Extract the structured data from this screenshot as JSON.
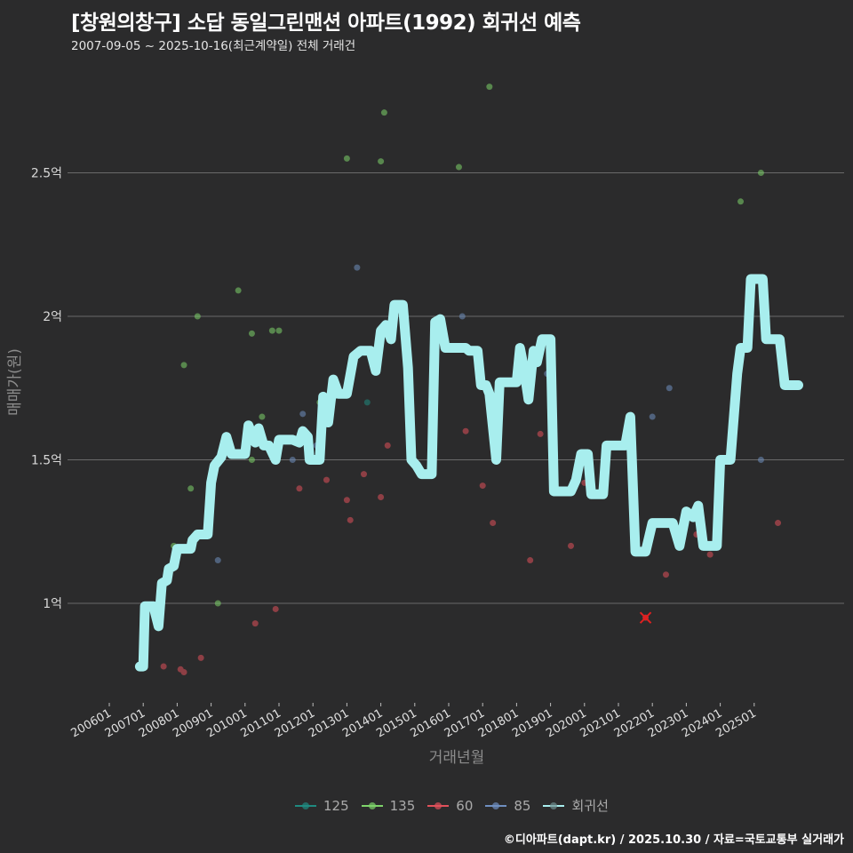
{
  "header": {
    "title": "[창원의창구] 소답 동일그린맨션 아파트(1992) 회귀선 예측",
    "subtitle": "2007-09-05 ~ 2025-10-16(최근계약일) 전체 거래건"
  },
  "footer": {
    "credit": "©디아파트(dapt.kr) / 2025.10.30 / 자료=국토교통부 실거래가"
  },
  "legend": [
    {
      "label": "125",
      "color": "#1f8a80"
    },
    {
      "label": "135",
      "color": "#7ed36a"
    },
    {
      "label": "60",
      "color": "#e0505a"
    },
    {
      "label": "85",
      "color": "#6f8fc0"
    },
    {
      "label": "회귀선",
      "color": "#a8eeee"
    }
  ],
  "chart_data": {
    "type": "scatter",
    "title": "[창원의창구] 소답 동일그린맨션 아파트(1992) 회귀선 예측",
    "subtitle": "2007-09-05 ~ 2025-10-16(최근계약일) 전체 거래건",
    "xlabel": "거래년월",
    "ylabel": "매매가(원)",
    "x_ticks": [
      "200601",
      "200701",
      "200801",
      "200901",
      "201001",
      "201101",
      "201201",
      "201301",
      "201401",
      "201501",
      "201601",
      "201701",
      "201801",
      "201901",
      "202001",
      "202101",
      "202201",
      "202301",
      "202401",
      "202501"
    ],
    "y_ticks": [
      {
        "value": 1.0,
        "label": "1억"
      },
      {
        "value": 1.5,
        "label": "1.5억"
      },
      {
        "value": 2.0,
        "label": "2억"
      },
      {
        "value": 2.5,
        "label": "2.5억"
      }
    ],
    "ylim": [
      0.65,
      2.95
    ],
    "xlim": [
      2005.5,
      2026.0
    ],
    "grid": "horizontal",
    "legend_position": "bottom",
    "unit": "억원",
    "series": [
      {
        "name": "125",
        "color": "#1f8a80",
        "points": [
          [
            2013.6,
            1.7
          ]
        ]
      },
      {
        "name": "135",
        "color": "#7ed36a",
        "points": [
          [
            2007.9,
            1.2
          ],
          [
            2008.2,
            1.83
          ],
          [
            2008.4,
            1.4
          ],
          [
            2008.6,
            2.0
          ],
          [
            2009.8,
            2.09
          ],
          [
            2010.2,
            1.94
          ],
          [
            2010.2,
            1.5
          ],
          [
            2010.5,
            1.65
          ],
          [
            2010.8,
            1.95
          ],
          [
            2011.0,
            1.95
          ],
          [
            2012.2,
            1.7
          ],
          [
            2013.0,
            2.55
          ],
          [
            2014.0,
            2.54
          ],
          [
            2014.1,
            2.71
          ],
          [
            2016.3,
            2.52
          ],
          [
            2017.2,
            2.8
          ],
          [
            2024.6,
            2.4
          ],
          [
            2025.2,
            2.5
          ],
          [
            2009.2,
            1.0
          ]
        ]
      },
      {
        "name": "60",
        "color": "#e0505a",
        "points": [
          [
            2007.6,
            0.78
          ],
          [
            2008.1,
            0.77
          ],
          [
            2008.2,
            0.76
          ],
          [
            2008.7,
            0.81
          ],
          [
            2010.3,
            0.93
          ],
          [
            2010.9,
            0.98
          ],
          [
            2011.6,
            1.4
          ],
          [
            2012.4,
            1.43
          ],
          [
            2013.0,
            1.36
          ],
          [
            2013.1,
            1.29
          ],
          [
            2013.5,
            1.45
          ],
          [
            2014.0,
            1.37
          ],
          [
            2014.2,
            1.55
          ],
          [
            2016.5,
            1.6
          ],
          [
            2017.0,
            1.41
          ],
          [
            2017.3,
            1.28
          ],
          [
            2018.7,
            1.59
          ],
          [
            2018.4,
            1.15
          ],
          [
            2019.6,
            1.2
          ],
          [
            2021.8,
            0.95
          ],
          [
            2022.4,
            1.1
          ],
          [
            2023.3,
            1.24
          ],
          [
            2023.7,
            1.17
          ],
          [
            2025.7,
            1.28
          ],
          [
            2020.0,
            1.42
          ]
        ]
      },
      {
        "name": "85",
        "color": "#6f8fc0",
        "points": [
          [
            2009.2,
            1.15
          ],
          [
            2011.4,
            1.5
          ],
          [
            2011.7,
            1.66
          ],
          [
            2013.3,
            2.17
          ],
          [
            2016.4,
            2.0
          ],
          [
            2018.9,
            1.8
          ],
          [
            2022.0,
            1.65
          ],
          [
            2022.5,
            1.75
          ],
          [
            2025.2,
            1.5
          ],
          [
            2012.1,
            1.55
          ]
        ]
      },
      {
        "name": "회귀선",
        "color": "#a8eeee",
        "type": "line",
        "points": [
          [
            2006.9,
            0.78
          ],
          [
            2007.0,
            0.78
          ],
          [
            2007.05,
            0.99
          ],
          [
            2007.3,
            0.99
          ],
          [
            2007.45,
            0.92
          ],
          [
            2007.55,
            1.07
          ],
          [
            2007.7,
            1.08
          ],
          [
            2007.75,
            1.12
          ],
          [
            2007.9,
            1.13
          ],
          [
            2008.0,
            1.19
          ],
          [
            2008.3,
            1.19
          ],
          [
            2008.4,
            1.19
          ],
          [
            2008.45,
            1.22
          ],
          [
            2008.6,
            1.24
          ],
          [
            2008.9,
            1.24
          ],
          [
            2009.0,
            1.42
          ],
          [
            2009.1,
            1.48
          ],
          [
            2009.3,
            1.51
          ],
          [
            2009.45,
            1.58
          ],
          [
            2009.6,
            1.52
          ],
          [
            2010.0,
            1.52
          ],
          [
            2010.1,
            1.62
          ],
          [
            2010.3,
            1.56
          ],
          [
            2010.4,
            1.61
          ],
          [
            2010.55,
            1.55
          ],
          [
            2010.7,
            1.55
          ],
          [
            2010.9,
            1.5
          ],
          [
            2011.0,
            1.57
          ],
          [
            2011.4,
            1.57
          ],
          [
            2011.6,
            1.56
          ],
          [
            2011.7,
            1.6
          ],
          [
            2011.85,
            1.58
          ],
          [
            2011.9,
            1.5
          ],
          [
            2012.2,
            1.5
          ],
          [
            2012.3,
            1.72
          ],
          [
            2012.45,
            1.63
          ],
          [
            2012.6,
            1.78
          ],
          [
            2012.75,
            1.73
          ],
          [
            2013.0,
            1.73
          ],
          [
            2013.2,
            1.86
          ],
          [
            2013.4,
            1.88
          ],
          [
            2013.7,
            1.88
          ],
          [
            2013.85,
            1.81
          ],
          [
            2014.0,
            1.95
          ],
          [
            2014.15,
            1.97
          ],
          [
            2014.3,
            1.92
          ],
          [
            2014.4,
            2.04
          ],
          [
            2014.65,
            2.04
          ],
          [
            2014.8,
            1.82
          ],
          [
            2014.9,
            1.5
          ],
          [
            2015.05,
            1.48
          ],
          [
            2015.2,
            1.45
          ],
          [
            2015.5,
            1.45
          ],
          [
            2015.6,
            1.98
          ],
          [
            2015.75,
            1.99
          ],
          [
            2015.9,
            1.89
          ],
          [
            2016.5,
            1.89
          ],
          [
            2016.6,
            1.88
          ],
          [
            2016.85,
            1.88
          ],
          [
            2016.95,
            1.76
          ],
          [
            2017.1,
            1.76
          ],
          [
            2017.2,
            1.73
          ],
          [
            2017.4,
            1.5
          ],
          [
            2017.5,
            1.77
          ],
          [
            2018.0,
            1.77
          ],
          [
            2018.1,
            1.89
          ],
          [
            2018.2,
            1.83
          ],
          [
            2018.35,
            1.71
          ],
          [
            2018.5,
            1.88
          ],
          [
            2018.6,
            1.84
          ],
          [
            2018.75,
            1.92
          ],
          [
            2019.0,
            1.92
          ],
          [
            2019.1,
            1.39
          ],
          [
            2019.6,
            1.39
          ],
          [
            2019.75,
            1.43
          ],
          [
            2019.9,
            1.52
          ],
          [
            2020.1,
            1.52
          ],
          [
            2020.2,
            1.38
          ],
          [
            2020.55,
            1.38
          ],
          [
            2020.65,
            1.55
          ],
          [
            2021.2,
            1.55
          ],
          [
            2021.35,
            1.65
          ],
          [
            2021.5,
            1.18
          ],
          [
            2021.8,
            1.18
          ],
          [
            2022.0,
            1.28
          ],
          [
            2022.6,
            1.28
          ],
          [
            2022.8,
            1.2
          ],
          [
            2023.0,
            1.32
          ],
          [
            2023.2,
            1.3
          ],
          [
            2023.35,
            1.34
          ],
          [
            2023.5,
            1.2
          ],
          [
            2023.9,
            1.2
          ],
          [
            2024.0,
            1.5
          ],
          [
            2024.3,
            1.5
          ],
          [
            2024.5,
            1.8
          ],
          [
            2024.6,
            1.89
          ],
          [
            2024.8,
            1.89
          ],
          [
            2024.9,
            2.13
          ],
          [
            2025.25,
            2.13
          ],
          [
            2025.35,
            1.92
          ],
          [
            2025.75,
            1.92
          ],
          [
            2025.9,
            1.76
          ],
          [
            2026.3,
            1.76
          ]
        ]
      }
    ],
    "annotations": [
      {
        "type": "cross-marker",
        "x": 2021.8,
        "y": 0.95,
        "color": "#e02020"
      }
    ]
  }
}
